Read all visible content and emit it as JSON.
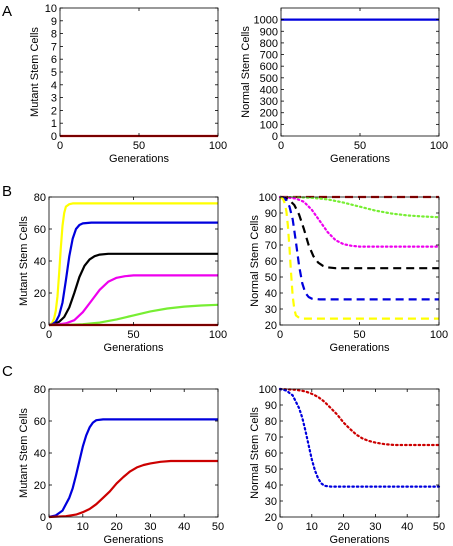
{
  "panel_labels": [
    "A",
    "B",
    "C"
  ],
  "chart_data": [
    {
      "type": "line",
      "panel": "A",
      "xlabel": "Generations",
      "ylabel": "Mutant Stem Cells",
      "xlim": [
        0,
        100
      ],
      "ylim": [
        0,
        10
      ],
      "xticks": [
        0,
        50,
        100
      ],
      "yticks": [
        0,
        1,
        2,
        3,
        4,
        5,
        6,
        7,
        8,
        9,
        10
      ],
      "grid": false,
      "series": [
        {
          "color": "#cc0000",
          "style": "solid",
          "x": [
            0,
            100
          ],
          "y": [
            0,
            0
          ]
        }
      ]
    },
    {
      "type": "line",
      "panel": "A",
      "xlabel": "Generations",
      "ylabel": "Normal Stem Cells",
      "xlim": [
        0,
        100
      ],
      "ylim": [
        0,
        1100
      ],
      "xticks": [
        0,
        50,
        100
      ],
      "yticks": [
        0,
        100,
        200,
        300,
        400,
        500,
        600,
        700,
        800,
        900,
        1000
      ],
      "grid": false,
      "series": [
        {
          "color": "#0000dd",
          "style": "solid",
          "x": [
            0,
            100
          ],
          "y": [
            1000,
            1000
          ]
        }
      ]
    },
    {
      "type": "line",
      "panel": "B",
      "xlabel": "Generations",
      "ylabel": "Mutant Stem Cells",
      "xlim": [
        0,
        100
      ],
      "ylim": [
        0,
        80
      ],
      "xticks": [
        0,
        50,
        100
      ],
      "yticks": [
        0,
        20,
        40,
        60,
        80
      ],
      "grid": false,
      "series": [
        {
          "color": "#ffff00",
          "style": "solid",
          "x": [
            0,
            1,
            2,
            3,
            4,
            5,
            6,
            7,
            8,
            9,
            10,
            12,
            14,
            16,
            20,
            30,
            50,
            100
          ],
          "y": [
            0,
            0.5,
            1.5,
            4,
            9,
            18,
            32,
            48,
            62,
            70,
            74,
            75.5,
            76,
            76,
            76,
            76,
            76,
            76
          ]
        },
        {
          "color": "#0000dd",
          "style": "solid",
          "x": [
            0,
            2,
            4,
            6,
            8,
            10,
            12,
            14,
            16,
            18,
            20,
            25,
            30,
            50,
            100
          ],
          "y": [
            0,
            0.5,
            2,
            6,
            14,
            28,
            43,
            54,
            60,
            62.5,
            63.5,
            64,
            64,
            64,
            64
          ]
        },
        {
          "color": "#000000",
          "style": "solid",
          "x": [
            0,
            3,
            6,
            9,
            12,
            15,
            18,
            21,
            24,
            27,
            30,
            35,
            40,
            60,
            100
          ],
          "y": [
            0,
            0.5,
            2,
            5,
            11,
            20,
            30,
            37,
            41,
            43,
            44,
            44.5,
            44.5,
            44.5,
            44.5
          ]
        },
        {
          "color": "#ee00ee",
          "style": "solid",
          "x": [
            0,
            5,
            10,
            15,
            20,
            25,
            30,
            35,
            40,
            45,
            50,
            60,
            70,
            100
          ],
          "y": [
            0,
            0.3,
            1,
            3,
            8,
            15,
            22,
            27,
            29.5,
            30.5,
            31,
            31,
            31,
            31
          ]
        },
        {
          "color": "#77ee33",
          "style": "solid",
          "x": [
            0,
            10,
            20,
            30,
            40,
            50,
            60,
            70,
            80,
            90,
            100
          ],
          "y": [
            0,
            0.1,
            0.5,
            1.5,
            3.5,
            6,
            8.5,
            10.3,
            11.5,
            12.2,
            12.6
          ]
        },
        {
          "color": "#cc0000",
          "style": "solid",
          "x": [
            0,
            100
          ],
          "y": [
            0,
            0
          ]
        }
      ]
    },
    {
      "type": "line",
      "panel": "B",
      "xlabel": "Generations",
      "ylabel": "Normal Stem Cells",
      "xlim": [
        0,
        100
      ],
      "ylim": [
        20,
        100
      ],
      "xticks": [
        0,
        50,
        100
      ],
      "yticks": [
        20,
        30,
        40,
        50,
        60,
        70,
        80,
        90,
        100
      ],
      "grid": false,
      "series": [
        {
          "color": "#cc0000",
          "style": "dashed",
          "x": [
            0,
            100
          ],
          "y": [
            100,
            100
          ]
        },
        {
          "color": "#77ee33",
          "style": "dotted",
          "x": [
            0,
            10,
            20,
            30,
            40,
            50,
            60,
            70,
            80,
            90,
            100
          ],
          "y": [
            100,
            99.9,
            99.5,
            98.5,
            96.5,
            94,
            91.5,
            89.7,
            88.5,
            87.8,
            87.4
          ]
        },
        {
          "color": "#ee00ee",
          "style": "dotted",
          "x": [
            0,
            5,
            10,
            15,
            20,
            25,
            30,
            35,
            40,
            45,
            50,
            60,
            70,
            100
          ],
          "y": [
            100,
            99.7,
            99,
            97,
            92,
            85,
            78,
            73,
            70.5,
            69.5,
            69,
            69,
            69,
            69
          ]
        },
        {
          "color": "#000000",
          "style": "dashed",
          "x": [
            0,
            3,
            6,
            9,
            12,
            15,
            18,
            21,
            24,
            27,
            30,
            35,
            40,
            60,
            100
          ],
          "y": [
            100,
            99.5,
            98,
            95,
            89,
            80,
            70,
            63,
            59,
            57,
            56,
            55.5,
            55.5,
            55.5,
            55.5
          ]
        },
        {
          "color": "#0000dd",
          "style": "dashed",
          "x": [
            0,
            2,
            4,
            6,
            8,
            10,
            12,
            14,
            16,
            18,
            20,
            25,
            30,
            50,
            100
          ],
          "y": [
            100,
            99.5,
            98,
            94,
            86,
            72,
            57,
            46,
            40,
            37.5,
            36.5,
            36,
            36,
            36,
            36
          ]
        },
        {
          "color": "#ffff00",
          "style": "dashed",
          "x": [
            0,
            1,
            2,
            3,
            4,
            5,
            6,
            7,
            8,
            9,
            10,
            12,
            14,
            16,
            20,
            30,
            50,
            100
          ],
          "y": [
            100,
            99.5,
            98.5,
            96,
            91,
            82,
            68,
            52,
            38,
            30,
            26,
            24.5,
            24,
            24,
            24,
            24,
            24,
            24
          ]
        }
      ]
    },
    {
      "type": "line",
      "panel": "C",
      "xlabel": "Generations",
      "ylabel": "Mutant Stem Cells",
      "xlim": [
        0,
        50
      ],
      "ylim": [
        0,
        80
      ],
      "xticks": [
        0,
        10,
        20,
        30,
        40,
        50
      ],
      "yticks": [
        0,
        20,
        40,
        60,
        80
      ],
      "grid": false,
      "series": [
        {
          "color": "#0000dd",
          "style": "solid",
          "x": [
            0,
            2,
            4,
            6,
            7,
            8,
            9,
            10,
            11,
            12,
            13,
            14,
            16,
            18,
            20,
            25,
            30,
            40,
            50
          ],
          "y": [
            0,
            1,
            4,
            12,
            18,
            26,
            35,
            44,
            51,
            56,
            59,
            60.5,
            61,
            61,
            61,
            61,
            61,
            61,
            61
          ]
        },
        {
          "color": "#cc0000",
          "style": "solid",
          "x": [
            0,
            5,
            8,
            10,
            12,
            14,
            16,
            18,
            20,
            22,
            24,
            26,
            28,
            30,
            33,
            36,
            40,
            45,
            50
          ],
          "y": [
            0,
            0.5,
            1.5,
            3,
            5,
            8,
            12,
            16,
            21,
            25,
            28.5,
            31,
            32.5,
            33.5,
            34.5,
            35,
            35,
            35,
            35
          ]
        }
      ]
    },
    {
      "type": "line",
      "panel": "C",
      "xlabel": "Generations",
      "ylabel": "Normal Stem Cells",
      "xlim": [
        0,
        50
      ],
      "ylim": [
        20,
        100
      ],
      "xticks": [
        0,
        10,
        20,
        30,
        40,
        50
      ],
      "yticks": [
        20,
        30,
        40,
        50,
        60,
        70,
        80,
        90,
        100
      ],
      "grid": false,
      "series": [
        {
          "color": "#cc0000",
          "style": "dotted",
          "x": [
            0,
            5,
            8,
            10,
            12,
            14,
            16,
            18,
            20,
            22,
            24,
            26,
            28,
            30,
            33,
            36,
            40,
            45,
            50
          ],
          "y": [
            100,
            99.5,
            98.5,
            97,
            95,
            92,
            88,
            84,
            79,
            75,
            71.5,
            69,
            67.5,
            66.5,
            65.5,
            65,
            65,
            65,
            65
          ]
        },
        {
          "color": "#0000dd",
          "style": "dotted",
          "x": [
            0,
            2,
            4,
            6,
            7,
            8,
            9,
            10,
            11,
            12,
            13,
            14,
            16,
            18,
            20,
            25,
            30,
            40,
            50
          ],
          "y": [
            100,
            99,
            96,
            88,
            82,
            74,
            65,
            56,
            49,
            44,
            41,
            39.5,
            39,
            39,
            39,
            39,
            39,
            39,
            39
          ]
        }
      ]
    }
  ]
}
